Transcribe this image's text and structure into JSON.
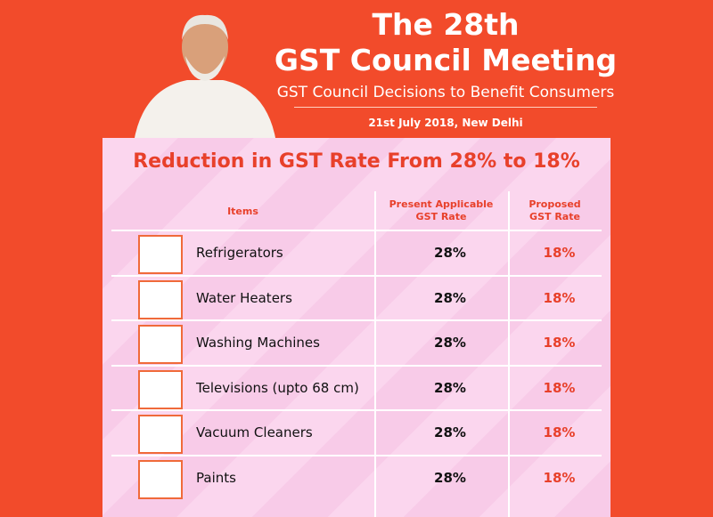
{
  "header": {
    "title": [
      "The 28th",
      "GST Council Meeting"
    ],
    "subtitle": "GST Council Decisions to Benefit Consumers",
    "date": "21st July 2018, New Delhi"
  },
  "panel": {
    "title": "Reduction in GST Rate From 28% to 18%"
  },
  "table": {
    "columns": [
      [
        "Items"
      ],
      [
        "Present Applicable",
        "GST Rate"
      ],
      [
        "Proposed",
        "GST Rate"
      ]
    ],
    "rows": [
      [
        "Refrigerators",
        "28%",
        "18%"
      ],
      [
        "Water Heaters",
        "28%",
        "18%"
      ],
      [
        "Washing Machines",
        "28%",
        "18%"
      ],
      [
        "Televisions (upto 68 cm)",
        "28%",
        "18%"
      ],
      [
        "Vacuum Cleaners",
        "28%",
        "18%"
      ],
      [
        "Paints",
        "28%",
        "18%"
      ]
    ]
  }
}
